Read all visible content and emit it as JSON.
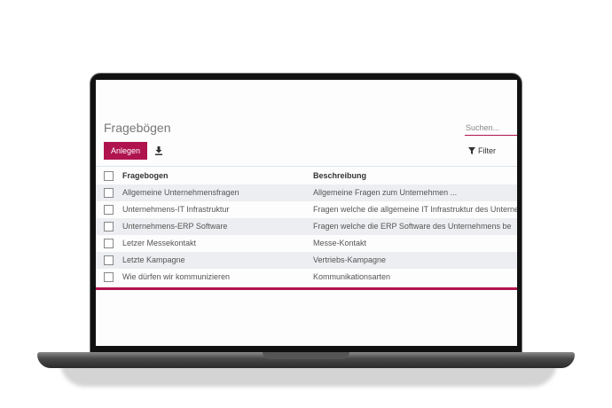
{
  "page": {
    "title": "Fragebögen"
  },
  "search": {
    "placeholder": "Suchen..."
  },
  "toolbar": {
    "create_label": "Anlegen",
    "download_icon": "download-icon",
    "filter_label": "Filter",
    "filter_icon": "funnel-icon"
  },
  "table": {
    "columns": [
      "Fragebogen",
      "Beschreibung"
    ],
    "rows": [
      {
        "name": "Allgemeine Unternehmensfragen",
        "description": "Allgemeine Fragen zum Unternehmen ..."
      },
      {
        "name": "Unternehmens-IT Infrastruktur",
        "description": "Fragen welche die allgemeine IT Infrastruktur des Unternehmens"
      },
      {
        "name": "Unternehmens-ERP Software",
        "description": "Fragen welche die ERP Software des Unternehmens be"
      },
      {
        "name": "Letzer Messekontakt",
        "description": "Messe-Kontakt"
      },
      {
        "name": "Letzte Kampagne",
        "description": "Vertriebs-Kampagne"
      },
      {
        "name": "Wie dürfen wir kommunizieren",
        "description": "Kommunikationsarten"
      }
    ]
  },
  "colors": {
    "accent": "#b0144f",
    "row_alt": "#eceef1"
  }
}
